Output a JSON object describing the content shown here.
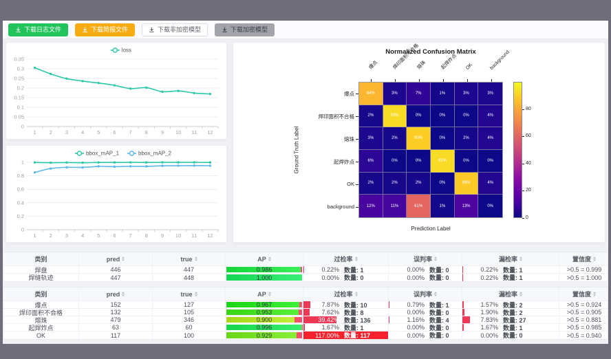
{
  "toolbar": {
    "buttons": [
      {
        "label": "下载日志文件",
        "style": "green"
      },
      {
        "label": "下载简报文件",
        "style": "orange"
      },
      {
        "label": "下载非加密模型",
        "style": "white"
      },
      {
        "label": "下载加密模型",
        "style": "gray"
      }
    ]
  },
  "chart_data": [
    {
      "type": "line",
      "title": "",
      "legend": [
        "loss"
      ],
      "legend_position": "top",
      "grid": true,
      "x": [
        1,
        2,
        3,
        4,
        5,
        6,
        7,
        8,
        9,
        10,
        11,
        12
      ],
      "ylim": [
        0,
        0.35
      ],
      "yticks": [
        0,
        0.05,
        0.1,
        0.15,
        0.2,
        0.25,
        0.3,
        0.35
      ],
      "series": [
        {
          "name": "loss",
          "color": "#2bc8a8",
          "values": [
            0.305,
            0.273,
            0.249,
            0.236,
            0.226,
            0.214,
            0.197,
            0.202,
            0.181,
            0.185,
            0.174,
            0.169
          ]
        }
      ]
    },
    {
      "type": "line",
      "title": "",
      "legend": [
        "bbox_mAP_1",
        "bbox_mAP_2"
      ],
      "legend_position": "top",
      "grid": true,
      "x": [
        1,
        2,
        3,
        4,
        5,
        6,
        7,
        8,
        9,
        10,
        11,
        12
      ],
      "ylim": [
        0,
        1
      ],
      "yticks": [
        0,
        0.2,
        0.4,
        0.6,
        0.8,
        1
      ],
      "series": [
        {
          "name": "bbox_mAP_1",
          "color": "#2bc8a8",
          "values": [
            0.998,
            0.994,
            0.997,
            0.994,
            0.998,
            0.998,
            0.999,
            0.998,
            0.999,
            0.999,
            0.999,
            0.998
          ]
        },
        {
          "name": "bbox_mAP_2",
          "color": "#5cb8e6",
          "values": [
            0.85,
            0.908,
            0.925,
            0.924,
            0.94,
            0.936,
            0.941,
            0.94,
            0.948,
            0.95,
            0.951,
            0.95
          ]
        }
      ]
    },
    {
      "type": "heatmap",
      "title": "Normalized Confusion Matrix",
      "xlabel": "Prediction Label",
      "ylabel": "Ground Truth Label",
      "colormap": "plasma",
      "unit": "%",
      "vmax": 100,
      "colorbar_ticks": [
        0,
        20,
        40,
        60,
        80
      ],
      "labels": [
        "爆点",
        "焊印面积不合格",
        "熔珠",
        "起焊炸点",
        "OK",
        "background"
      ],
      "values": [
        [
          84,
          3,
          7,
          1,
          3,
          3
        ],
        [
          2,
          93,
          0,
          0,
          0,
          4
        ],
        [
          3,
          2,
          90,
          0,
          2,
          4
        ],
        [
          6,
          0,
          0,
          93,
          0,
          0
        ],
        [
          2,
          2,
          2,
          0,
          89,
          4
        ],
        [
          12,
          11,
          61,
          1,
          13,
          0
        ]
      ]
    }
  ],
  "tables": [
    {
      "columns": [
        "类别",
        "pred",
        "true",
        "AP",
        "过检率",
        "误判率",
        "漏检率",
        "置信度"
      ],
      "rows": [
        {
          "name": "焊盘",
          "pred": "446",
          "true": "447",
          "ap": 0.986,
          "ap_text": "0.986",
          "overkill": {
            "pct": "0.22%",
            "ratio": 0.22,
            "count": "数量: 1"
          },
          "misjudge": {
            "pct": "0.00%",
            "ratio": 0,
            "count": "数量: 0"
          },
          "miss": {
            "pct": "0.22%",
            "ratio": 0.22,
            "count": "数量: 1"
          },
          "confidence": ">0.5 = 0.999"
        },
        {
          "name": "焊缝轨迹",
          "pred": "447",
          "true": "448",
          "ap": 1.0,
          "ap_text": "1.000",
          "overkill": {
            "pct": "0.00%",
            "ratio": 0,
            "count": "数量: 0"
          },
          "misjudge": {
            "pct": "0.00%",
            "ratio": 0,
            "count": "数量: 0"
          },
          "miss": {
            "pct": "0.22%",
            "ratio": 0.22,
            "count": "数量: 1"
          },
          "confidence": ">0.5 = 1.000"
        }
      ]
    },
    {
      "columns": [
        "类别",
        "pred",
        "true",
        "AP",
        "过检率",
        "误判率",
        "漏检率",
        "置信度"
      ],
      "rows": [
        {
          "name": "爆点",
          "pred": "152",
          "true": "127",
          "ap": 0.967,
          "ap_text": "0.967",
          "overkill": {
            "pct": "7.87%",
            "ratio": 7.87,
            "count": "数量: 10"
          },
          "misjudge": {
            "pct": "0.79%",
            "ratio": 0.79,
            "count": "数量: 1"
          },
          "miss": {
            "pct": "1.57%",
            "ratio": 1.57,
            "count": "数量: 2"
          },
          "confidence": ">0.5 = 0.924"
        },
        {
          "name": "焊印面积不合格",
          "pred": "132",
          "true": "105",
          "ap": 0.953,
          "ap_text": "0.953",
          "overkill": {
            "pct": "7.62%",
            "ratio": 7.62,
            "count": "数量: 8"
          },
          "misjudge": {
            "pct": "0.00%",
            "ratio": 0,
            "count": "数量: 0"
          },
          "miss": {
            "pct": "1.90%",
            "ratio": 1.9,
            "count": "数量: 2"
          },
          "confidence": ">0.5 = 0.905"
        },
        {
          "name": "熔珠",
          "pred": "479",
          "true": "346",
          "ap": 0.9,
          "ap_text": "0.900",
          "overkill": {
            "pct": "39.42%",
            "ratio": 39.42,
            "count": "数量: 136"
          },
          "misjudge": {
            "pct": "1.16%",
            "ratio": 1.16,
            "count": "数量: 4"
          },
          "miss": {
            "pct": "7.83%",
            "ratio": 7.83,
            "count": "数量: 27"
          },
          "confidence": ">0.5 = 0.881"
        },
        {
          "name": "起焊炸点",
          "pred": "63",
          "true": "60",
          "ap": 0.996,
          "ap_text": "0.996",
          "overkill": {
            "pct": "1.67%",
            "ratio": 1.67,
            "count": "数量: 1"
          },
          "misjudge": {
            "pct": "0.00%",
            "ratio": 0,
            "count": "数量: 0"
          },
          "miss": {
            "pct": "1.67%",
            "ratio": 1.67,
            "count": "数量: 1"
          },
          "confidence": ">0.5 = 0.985"
        },
        {
          "name": "OK",
          "pred": "117",
          "true": "100",
          "ap": 0.929,
          "ap_text": "0.929",
          "overkill": {
            "pct": "117.00%",
            "ratio": 117,
            "count": "数量: 117"
          },
          "misjudge": {
            "pct": "0.00%",
            "ratio": 0,
            "count": "数量: 0"
          },
          "miss": {
            "pct": "0.00%",
            "ratio": 0,
            "count": "数量: 0"
          },
          "confidence": ">0.5 = 0.940"
        }
      ]
    }
  ],
  "colors": {
    "accent_teal": "#2bc8a8",
    "accent_blue": "#5cb8e6",
    "ap_bar_red": "#ff4d6d",
    "rate_bar": "#ef3756",
    "page_bg": "#6e6d79",
    "content_bg": "#f0f1f4"
  }
}
